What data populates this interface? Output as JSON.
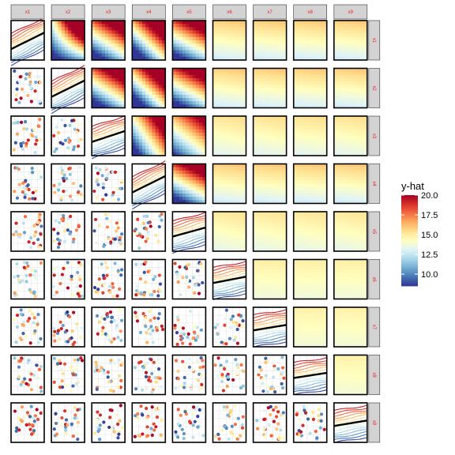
{
  "chart_data": {
    "type": "matrix",
    "variables": [
      "x1",
      "x2",
      "x3",
      "x4",
      "x5",
      "x6",
      "x7",
      "x8",
      "x9"
    ],
    "upper_panels": "heatmap",
    "diagonal_panels": "line",
    "lower_panels": "scatter",
    "legend": {
      "title": "y-hat",
      "min": 8.5,
      "max": 20.0,
      "ticks": [
        20.0,
        17.5,
        15.0,
        12.5,
        10.0
      ],
      "tick_labels": [
        "20.0",
        "17.5",
        "15.0",
        "12.5",
        "10.0"
      ],
      "placement": "right",
      "colors": [
        "#313695",
        "#4575b4",
        "#74add1",
        "#abd9e9",
        "#e0f3f8",
        "#ffffbf",
        "#fee090",
        "#fdae61",
        "#f46d43",
        "#d73027",
        "#a50026"
      ]
    },
    "importance": [
      0.9,
      0.9,
      0.6,
      0.9,
      0.5,
      0.35,
      0.3,
      0.28,
      0.3
    ],
    "strip_color": "#d3d3d3",
    "label_color": "#e8202a"
  }
}
